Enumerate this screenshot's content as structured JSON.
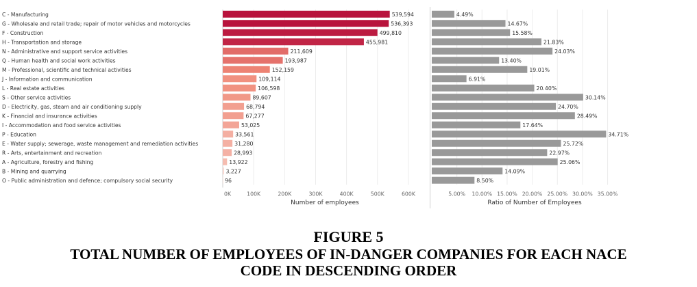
{
  "figure": {
    "number_label": "FIGURE 5",
    "title_line1": "TOTAL NUMBER OF EMPLOYEES OF IN-DANGER COMPANIES FOR EACH NACE",
    "title_line2": "CODE IN DESCENDING ORDER"
  },
  "chart_data": [
    {
      "type": "bar",
      "orientation": "horizontal",
      "categories": [
        "C - Manufacturing",
        "G - Wholesale and retail trade; repair of motor vehicles and motorcycles",
        "F - Construction",
        "H - Transportation and storage",
        "N - Administrative and support service activities",
        "Q - Human health and social work activities",
        "M - Professional, scientific and technical activities",
        "J - Information and communication",
        "L - Real estate activities",
        "S - Other service activities",
        "D - Electricity, gas, steam and air conditioning supply",
        "K - Financial and insurance activities",
        "I - Accommodation and food service activities",
        "P - Education",
        "E - Water supply; sewerage, waste management and remediation activities",
        "R - Arts, entertainment and recreation",
        "A - Agriculture, forestry and fishing",
        "B - Mining and quarrying",
        "O - Public administration and defence; compulsory social security"
      ],
      "values": [
        539594,
        536393,
        499810,
        455981,
        211609,
        193987,
        152159,
        109114,
        106598,
        89607,
        68794,
        67277,
        53025,
        33561,
        31280,
        28993,
        13922,
        3227,
        96
      ],
      "value_labels": [
        "539,594",
        "536,393",
        "499,810",
        "455,981",
        "211,609",
        "193,987",
        "152,159",
        "109,114",
        "106,598",
        "89,607",
        "68,794",
        "67,277",
        "53,025",
        "33,561",
        "31,280",
        "28,993",
        "13,922",
        "3,227",
        "96"
      ],
      "xlabel": "Number of employees",
      "xlim": [
        0,
        620000
      ],
      "ticks": [
        0,
        100000,
        200000,
        300000,
        400000,
        500000,
        600000
      ],
      "tick_labels": [
        "0K",
        "100K",
        "200K",
        "300K",
        "400K",
        "500K",
        "600K"
      ],
      "color_scale": [
        "#f8d3cb",
        "#f08a78",
        "#b8123c"
      ]
    },
    {
      "type": "bar",
      "orientation": "horizontal",
      "categories_shared": true,
      "values": [
        4.49,
        14.67,
        15.58,
        21.83,
        24.03,
        13.4,
        19.01,
        6.91,
        20.4,
        30.14,
        24.7,
        28.49,
        17.64,
        34.71,
        25.72,
        22.97,
        25.06,
        14.09,
        8.5
      ],
      "value_labels": [
        "4.49%",
        "14.67%",
        "15.58%",
        "21.83%",
        "24.03%",
        "13.40%",
        "19.01%",
        "6.91%",
        "20.40%",
        "30.14%",
        "24.70%",
        "28.49%",
        "17.64%",
        "34.71%",
        "25.72%",
        "22.97%",
        "25.06%",
        "14.09%",
        "8.50%"
      ],
      "xlabel": "Ratio of Number of Employees",
      "xlim": [
        0,
        38.2
      ],
      "ticks": [
        5,
        10,
        15,
        20,
        25,
        30,
        35
      ],
      "tick_labels": [
        "5.00%",
        "10.00%",
        "15.00%",
        "20.00%",
        "25.00%",
        "30.00%",
        "35.00%"
      ],
      "bar_color": "#999999"
    }
  ]
}
